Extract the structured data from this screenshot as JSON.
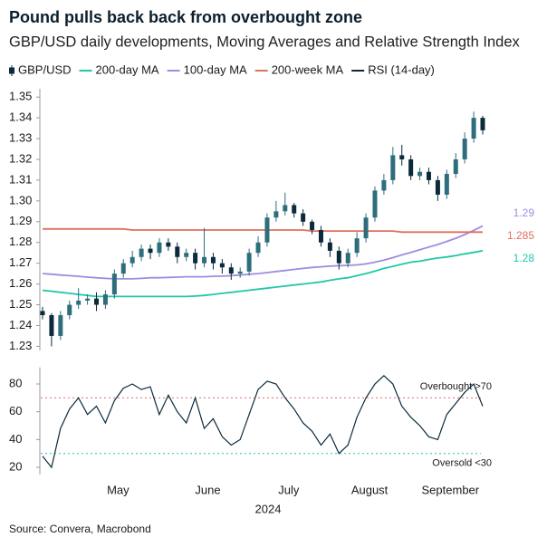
{
  "title": "Pound pulls back back from overbought zone",
  "subtitle": "GBP/USD daily developments, Moving Averages and Relative Strength Index",
  "source": "Source: Convera, Macrobond",
  "chart_data": [
    {
      "type": "candlestick",
      "categories": [
        null,
        null,
        null,
        null,
        null,
        null,
        null,
        null,
        "May",
        null,
        null,
        null,
        null,
        null,
        null,
        null,
        null,
        null,
        "June",
        null,
        null,
        null,
        null,
        null,
        null,
        null,
        null,
        "July",
        null,
        null,
        null,
        null,
        null,
        null,
        null,
        null,
        "August",
        null,
        null,
        null,
        null,
        null,
        null,
        null,
        null,
        "September",
        null,
        null,
        null,
        null
      ],
      "ylim": [
        1.228,
        1.354
      ],
      "yticks": [
        1.23,
        1.24,
        1.25,
        1.26,
        1.27,
        1.28,
        1.29,
        {
          "value": 1.3,
          "label": "1.30"
        },
        1.31,
        1.32,
        1.33,
        1.34,
        1.35
      ],
      "series": [
        {
          "name": "GBP/USD",
          "type": "candlestick",
          "color": "#0b2a3c",
          "up_color": "#2d6d7c",
          "down_color": "#0b2a3c",
          "open": [
            1.247,
            1.245,
            1.235,
            1.245,
            1.25,
            1.252,
            1.253,
            1.25,
            1.255,
            1.265,
            1.27,
            1.273,
            1.277,
            1.275,
            1.28,
            1.278,
            1.273,
            1.275,
            1.27,
            1.273,
            1.27,
            1.268,
            1.265,
            1.266,
            1.275,
            1.28,
            1.292,
            1.295,
            1.298,
            1.294,
            1.29,
            1.286,
            1.28,
            1.276,
            1.27,
            1.275,
            1.282,
            1.292,
            1.305,
            1.31,
            1.322,
            1.32,
            1.312,
            1.314,
            1.31,
            1.303,
            1.313,
            1.32,
            1.33,
            1.34
          ],
          "high": [
            1.249,
            1.246,
            1.247,
            1.252,
            1.258,
            1.255,
            1.256,
            1.257,
            1.267,
            1.272,
            1.276,
            1.279,
            1.279,
            1.282,
            1.282,
            1.28,
            1.277,
            1.277,
            1.287,
            1.275,
            1.272,
            1.27,
            1.268,
            1.277,
            1.283,
            1.294,
            1.3,
            1.304,
            1.299,
            1.296,
            1.291,
            1.288,
            1.282,
            1.278,
            1.277,
            1.285,
            1.294,
            1.307,
            1.313,
            1.326,
            1.327,
            1.322,
            1.316,
            1.316,
            1.312,
            1.315,
            1.323,
            1.333,
            1.343,
            1.341
          ],
          "low": [
            1.243,
            1.23,
            1.233,
            1.243,
            1.248,
            1.25,
            1.247,
            1.248,
            1.253,
            1.263,
            1.268,
            1.271,
            1.272,
            1.273,
            1.276,
            1.27,
            1.271,
            1.267,
            1.268,
            1.267,
            1.265,
            1.262,
            1.263,
            1.264,
            1.273,
            1.278,
            1.29,
            1.293,
            1.292,
            1.288,
            1.284,
            1.278,
            1.273,
            1.267,
            1.268,
            1.273,
            1.28,
            1.29,
            1.303,
            1.308,
            1.317,
            1.31,
            1.31,
            1.308,
            1.3,
            1.301,
            1.311,
            1.318,
            1.328,
            1.332
          ],
          "close": [
            1.245,
            1.235,
            1.245,
            1.25,
            1.252,
            1.253,
            1.25,
            1.255,
            1.265,
            1.27,
            1.273,
            1.277,
            1.275,
            1.28,
            1.278,
            1.273,
            1.275,
            1.27,
            1.273,
            1.27,
            1.268,
            1.265,
            1.266,
            1.275,
            1.28,
            1.292,
            1.295,
            1.298,
            1.294,
            1.29,
            1.286,
            1.28,
            1.276,
            1.27,
            1.275,
            1.282,
            1.292,
            1.305,
            1.31,
            1.322,
            1.32,
            1.312,
            1.314,
            1.31,
            1.303,
            1.313,
            1.32,
            1.33,
            1.34,
            1.334
          ]
        },
        {
          "name": "200-day MA",
          "type": "line",
          "color": "#22c7a9",
          "end_label": "1.28",
          "values": [
            1.257,
            1.2565,
            1.256,
            1.2555,
            1.255,
            1.2545,
            1.254,
            1.254,
            1.254,
            1.254,
            1.254,
            1.254,
            1.254,
            1.254,
            1.254,
            1.254,
            1.254,
            1.2542,
            1.2545,
            1.255,
            1.2555,
            1.256,
            1.2565,
            1.257,
            1.2575,
            1.258,
            1.2585,
            1.259,
            1.2595,
            1.26,
            1.2605,
            1.261,
            1.2618,
            1.2625,
            1.263,
            1.264,
            1.265,
            1.2662,
            1.2675,
            1.2685,
            1.2695,
            1.2705,
            1.271,
            1.2718,
            1.2725,
            1.273,
            1.2737,
            1.2745,
            1.2752,
            1.276
          ]
        },
        {
          "name": "100-day MA",
          "type": "line",
          "color": "#a08ce0",
          "end_label": "1.29",
          "values": [
            1.265,
            1.2647,
            1.2643,
            1.264,
            1.2637,
            1.2633,
            1.263,
            1.2627,
            1.2625,
            1.2625,
            1.2625,
            1.2627,
            1.263,
            1.263,
            1.2632,
            1.2633,
            1.2635,
            1.2635,
            1.2635,
            1.2637,
            1.2638,
            1.264,
            1.2643,
            1.2647,
            1.265,
            1.2655,
            1.266,
            1.2665,
            1.267,
            1.2675,
            1.268,
            1.2683,
            1.2686,
            1.2688,
            1.269,
            1.2692,
            1.2697,
            1.2705,
            1.2715,
            1.2727,
            1.274,
            1.2752,
            1.2765,
            1.2778,
            1.279,
            1.2805,
            1.282,
            1.2838,
            1.2858,
            1.288
          ]
        },
        {
          "name": "200-week MA",
          "type": "line",
          "color": "#e0705f",
          "end_label": "1.285",
          "values": [
            1.2865,
            1.2865,
            1.2865,
            1.2865,
            1.2865,
            1.2865,
            1.2865,
            1.2865,
            1.2865,
            1.2865,
            1.286,
            1.286,
            1.286,
            1.286,
            1.286,
            1.286,
            1.286,
            1.286,
            1.286,
            1.286,
            1.286,
            1.286,
            1.286,
            1.286,
            1.286,
            1.286,
            1.286,
            1.286,
            1.286,
            1.286,
            1.2855,
            1.2855,
            1.2855,
            1.2855,
            1.2855,
            1.2855,
            1.2855,
            1.2855,
            1.2855,
            1.2855,
            1.285,
            1.285,
            1.285,
            1.285,
            1.285,
            1.285,
            1.285,
            1.285,
            1.285,
            1.285
          ]
        }
      ]
    },
    {
      "type": "line",
      "xlabel": "2024",
      "ylim": [
        15,
        92
      ],
      "yticks": [
        20,
        40,
        60,
        80
      ],
      "reference_lines": [
        {
          "value": 70,
          "label": "Overbought >70",
          "color": "#e08a8a"
        },
        {
          "value": 30,
          "label": "Oversold <30",
          "color": "#3cc7c0"
        }
      ],
      "series": [
        {
          "name": "RSI (14-day)",
          "color": "#0b2a3c",
          "values": [
            28,
            20,
            48,
            62,
            70,
            58,
            64,
            52,
            68,
            77,
            80,
            76,
            78,
            58,
            72,
            60,
            52,
            70,
            48,
            55,
            42,
            36,
            40,
            58,
            76,
            82,
            80,
            70,
            62,
            52,
            46,
            36,
            44,
            30,
            36,
            56,
            70,
            80,
            86,
            80,
            64,
            56,
            50,
            42,
            40,
            58,
            66,
            74,
            80,
            64
          ]
        }
      ]
    }
  ]
}
